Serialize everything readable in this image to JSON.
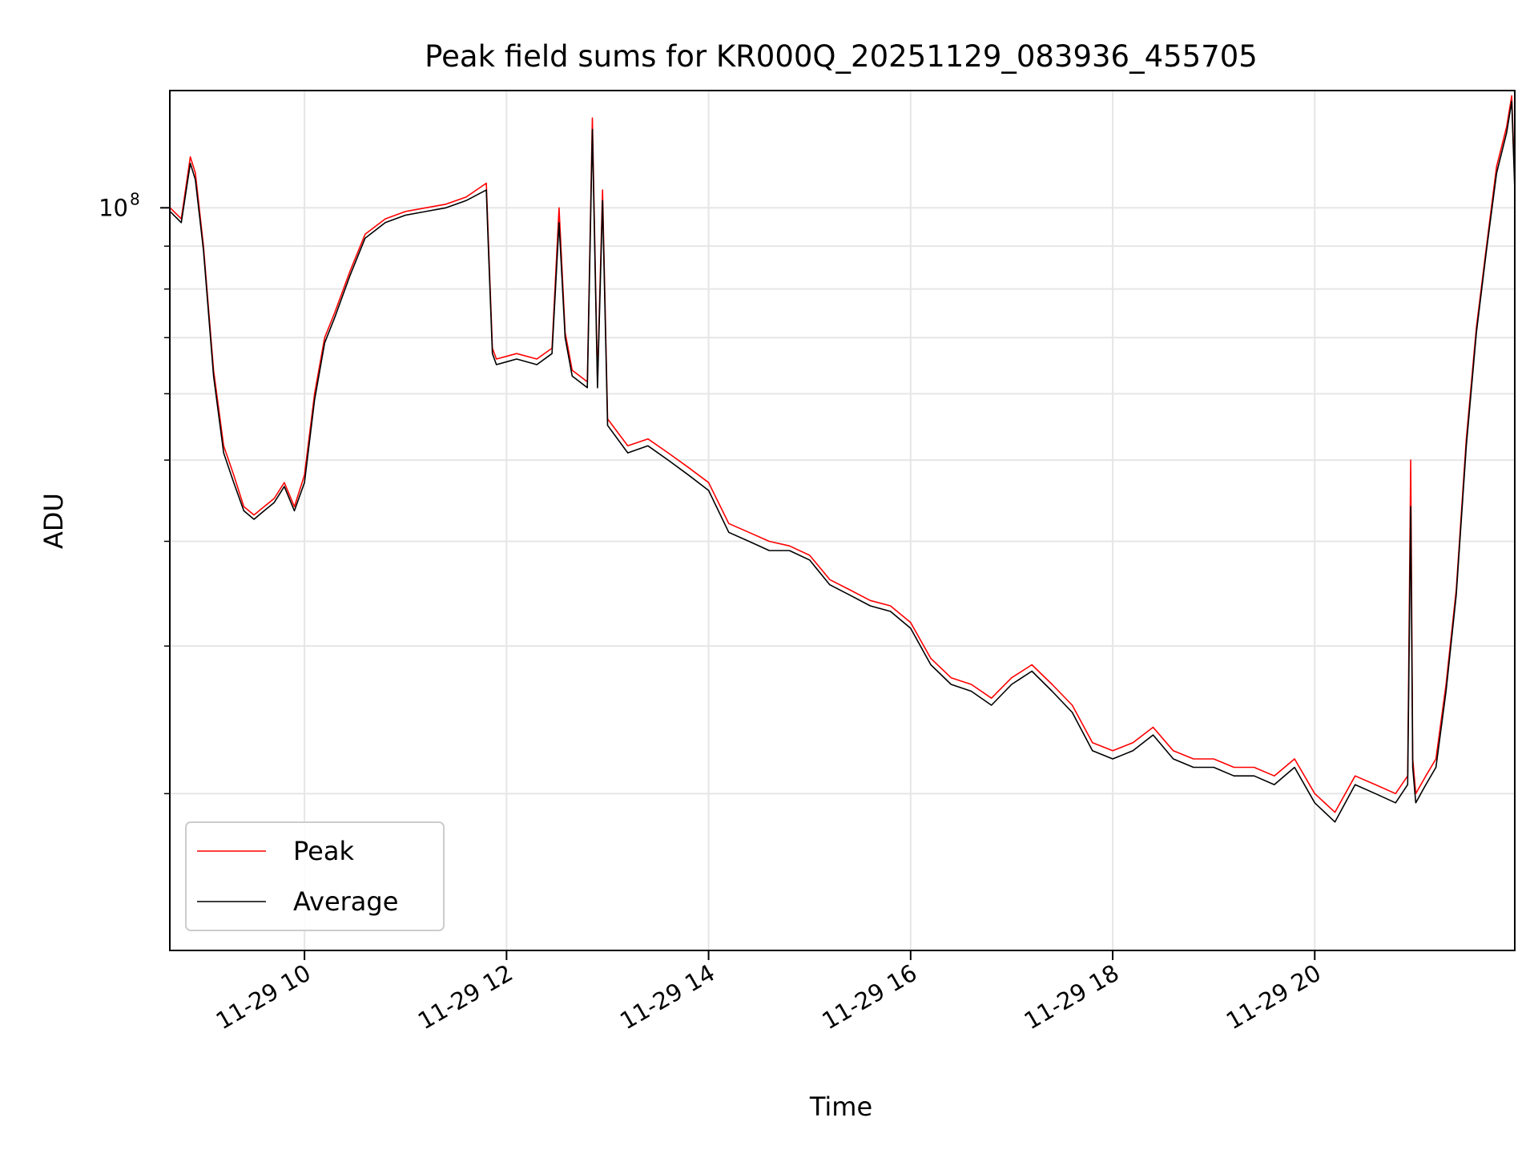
{
  "chart_data": {
    "type": "line",
    "title": "Peak field sums for KR000Q_20251129_083936_455705",
    "xlabel": "Time",
    "ylabel": "ADU",
    "yscale": "log",
    "ylim": [
      13000000,
      138000000
    ],
    "xlim": [
      8.667,
      21.98
    ],
    "grid": true,
    "x_ticks": [
      {
        "value": 10,
        "label": "11-29 10"
      },
      {
        "value": 12,
        "label": "11-29 12"
      },
      {
        "value": 14,
        "label": "11-29 14"
      },
      {
        "value": 16,
        "label": "11-29 16"
      },
      {
        "value": 18,
        "label": "11-29 18"
      },
      {
        "value": 20,
        "label": "11-29 20"
      }
    ],
    "y_major_ticks": [
      {
        "value": 100000000,
        "base": "10",
        "exp": "8"
      }
    ],
    "y_minor_ticks": [
      20000000,
      30000000,
      40000000,
      50000000,
      60000000,
      70000000,
      80000000,
      90000000
    ],
    "legend": {
      "position": "lower-left",
      "entries": [
        "Peak",
        "Average"
      ]
    },
    "series": [
      {
        "name": "Peak",
        "color": "#ff0000",
        "x": [
          8.67,
          8.78,
          8.87,
          8.92,
          9.0,
          9.1,
          9.2,
          9.3,
          9.4,
          9.5,
          9.6,
          9.7,
          9.8,
          9.9,
          10.0,
          10.1,
          10.2,
          10.3,
          10.45,
          10.6,
          10.8,
          11.0,
          11.2,
          11.4,
          11.6,
          11.8,
          11.82,
          11.86,
          11.9,
          12.1,
          12.3,
          12.45,
          12.52,
          12.58,
          12.65,
          12.8,
          12.85,
          12.9,
          12.95,
          13.0,
          13.2,
          13.4,
          13.6,
          13.8,
          14.0,
          14.2,
          14.4,
          14.6,
          14.8,
          15.0,
          15.2,
          15.4,
          15.6,
          15.8,
          16.0,
          16.2,
          16.4,
          16.6,
          16.8,
          17.0,
          17.2,
          17.4,
          17.6,
          17.8,
          18.0,
          18.2,
          18.4,
          18.6,
          18.8,
          19.0,
          19.2,
          19.4,
          19.6,
          19.8,
          20.0,
          20.2,
          20.4,
          20.6,
          20.8,
          20.92,
          20.95,
          20.97,
          21.0,
          21.1,
          21.2,
          21.3,
          21.4,
          21.5,
          21.6,
          21.7,
          21.8,
          21.9,
          21.95,
          21.98
        ],
        "y": [
          100000000,
          97000000,
          115000000,
          110000000,
          90000000,
          64000000,
          52000000,
          48000000,
          44000000,
          43000000,
          44000000,
          45000000,
          47000000,
          44000000,
          48000000,
          60000000,
          70000000,
          75000000,
          84000000,
          93000000,
          97000000,
          99000000,
          100000000,
          101000000,
          103000000,
          107000000,
          92000000,
          68000000,
          66000000,
          67000000,
          66000000,
          68000000,
          100000000,
          71000000,
          64000000,
          62000000,
          128000000,
          62000000,
          105000000,
          56000000,
          52000000,
          53000000,
          51000000,
          49000000,
          47000000,
          42000000,
          41000000,
          40000000,
          39500000,
          38500000,
          36000000,
          35000000,
          34000000,
          33500000,
          32000000,
          29000000,
          27500000,
          27000000,
          26000000,
          27500000,
          28500000,
          27000000,
          25500000,
          23000000,
          22500000,
          23000000,
          24000000,
          22500000,
          22000000,
          22000000,
          21500000,
          21500000,
          21000000,
          22000000,
          20000000,
          19000000,
          21000000,
          20500000,
          20000000,
          21000000,
          50000000,
          22000000,
          20000000,
          21000000,
          22000000,
          27000000,
          35000000,
          53000000,
          72000000,
          90000000,
          112000000,
          125000000,
          136000000,
          107000000
        ]
      },
      {
        "name": "Average",
        "color": "#000000",
        "x": [
          8.67,
          8.78,
          8.87,
          8.92,
          9.0,
          9.1,
          9.2,
          9.3,
          9.4,
          9.5,
          9.6,
          9.7,
          9.8,
          9.9,
          10.0,
          10.1,
          10.2,
          10.3,
          10.45,
          10.6,
          10.8,
          11.0,
          11.2,
          11.4,
          11.6,
          11.8,
          11.82,
          11.86,
          11.9,
          12.1,
          12.3,
          12.45,
          12.52,
          12.58,
          12.65,
          12.8,
          12.85,
          12.9,
          12.95,
          13.0,
          13.2,
          13.4,
          13.6,
          13.8,
          14.0,
          14.2,
          14.4,
          14.6,
          14.8,
          15.0,
          15.2,
          15.4,
          15.6,
          15.8,
          16.0,
          16.2,
          16.4,
          16.6,
          16.8,
          17.0,
          17.2,
          17.4,
          17.6,
          17.8,
          18.0,
          18.2,
          18.4,
          18.6,
          18.8,
          19.0,
          19.2,
          19.4,
          19.6,
          19.8,
          20.0,
          20.2,
          20.4,
          20.6,
          20.8,
          20.92,
          20.95,
          20.97,
          21.0,
          21.1,
          21.2,
          21.3,
          21.4,
          21.5,
          21.6,
          21.7,
          21.8,
          21.9,
          21.95,
          21.98
        ],
        "y": [
          99000000,
          96000000,
          113000000,
          108000000,
          89000000,
          63000000,
          51000000,
          47000000,
          43500000,
          42500000,
          43500000,
          44500000,
          46500000,
          43500000,
          47000000,
          59000000,
          69000000,
          74000000,
          83000000,
          92000000,
          96000000,
          98000000,
          99000000,
          100000000,
          102000000,
          105000000,
          90000000,
          67000000,
          65000000,
          66000000,
          65000000,
          67000000,
          96000000,
          70000000,
          63000000,
          61000000,
          124000000,
          61000000,
          102000000,
          55000000,
          51000000,
          52000000,
          50000000,
          48000000,
          46000000,
          41000000,
          40000000,
          39000000,
          39000000,
          38000000,
          35500000,
          34500000,
          33500000,
          33000000,
          31500000,
          28500000,
          27000000,
          26500000,
          25500000,
          27000000,
          28000000,
          26500000,
          25000000,
          22500000,
          22000000,
          22500000,
          23500000,
          22000000,
          21500000,
          21500000,
          21000000,
          21000000,
          20500000,
          21500000,
          19500000,
          18500000,
          20500000,
          20000000,
          19500000,
          20500000,
          44000000,
          21500000,
          19500000,
          20500000,
          21500000,
          26500000,
          34500000,
          52000000,
          71000000,
          89000000,
          110000000,
          123000000,
          134000000,
          105000000
        ]
      }
    ]
  }
}
